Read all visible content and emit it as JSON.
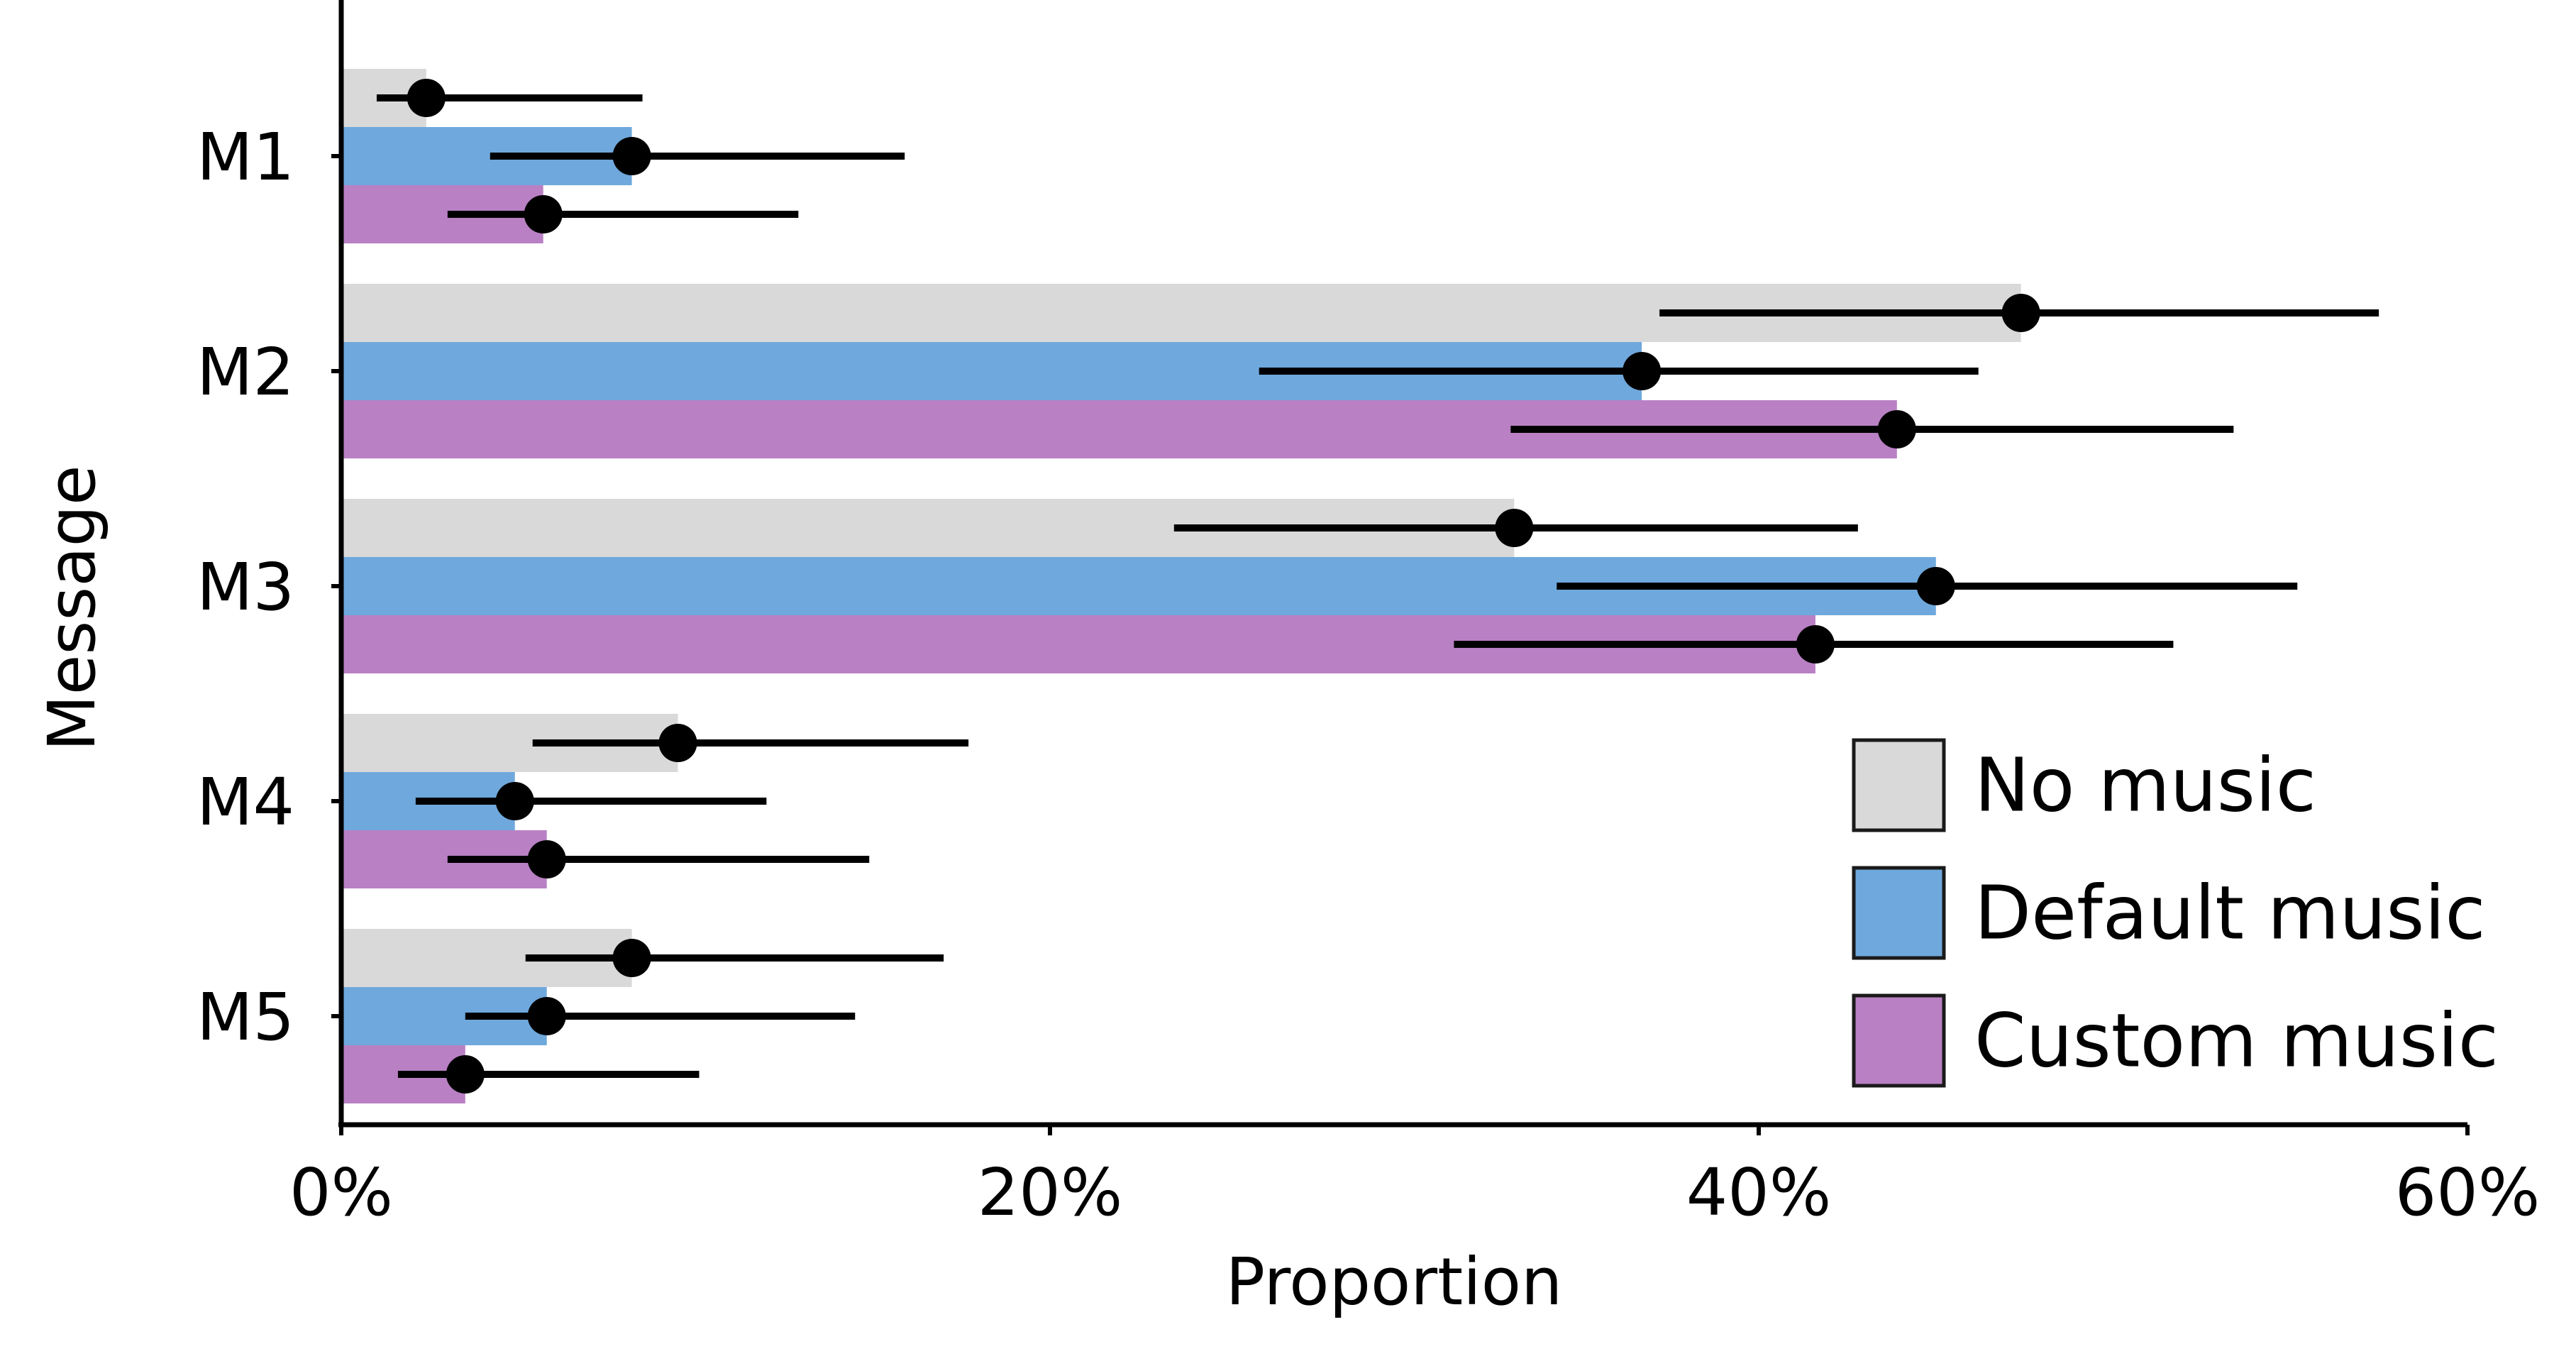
{
  "chart_data": {
    "type": "bar",
    "orientation": "horizontal",
    "title": "",
    "xlabel": "Proportion",
    "ylabel": "Message",
    "xlim": [
      0,
      60
    ],
    "x_ticks": [
      "0%",
      "20%",
      "40%",
      "60%"
    ],
    "x_tick_values": [
      0,
      20,
      40,
      60
    ],
    "categories": [
      "M1",
      "M2",
      "M3",
      "M4",
      "M5"
    ],
    "series": [
      {
        "name": "No music",
        "color": "#d9d9d9",
        "values": [
          2.4,
          47.4,
          33.1,
          9.5,
          8.2
        ],
        "ci_low": [
          1.0,
          37.2,
          23.5,
          5.4,
          5.2
        ],
        "ci_high": [
          8.5,
          57.5,
          42.8,
          17.7,
          17.0
        ]
      },
      {
        "name": "Default music",
        "color": "#6fa8dc",
        "values": [
          8.2,
          36.7,
          45.0,
          4.9,
          5.8
        ],
        "ci_low": [
          4.2,
          25.9,
          34.3,
          2.1,
          3.5
        ],
        "ci_high": [
          15.9,
          46.2,
          55.2,
          12.0,
          14.5
        ]
      },
      {
        "name": "Custom music",
        "color": "#b980c4",
        "values": [
          5.7,
          43.9,
          41.6,
          5.8,
          3.5
        ],
        "ci_low": [
          3.0,
          33.0,
          31.4,
          3.0,
          1.6
        ],
        "ci_high": [
          12.9,
          53.4,
          51.7,
          14.9,
          10.1
        ]
      }
    ],
    "legend": {
      "position": "bottom-right",
      "items": [
        "No music",
        "Default music",
        "Custom music"
      ]
    },
    "grid": false
  }
}
